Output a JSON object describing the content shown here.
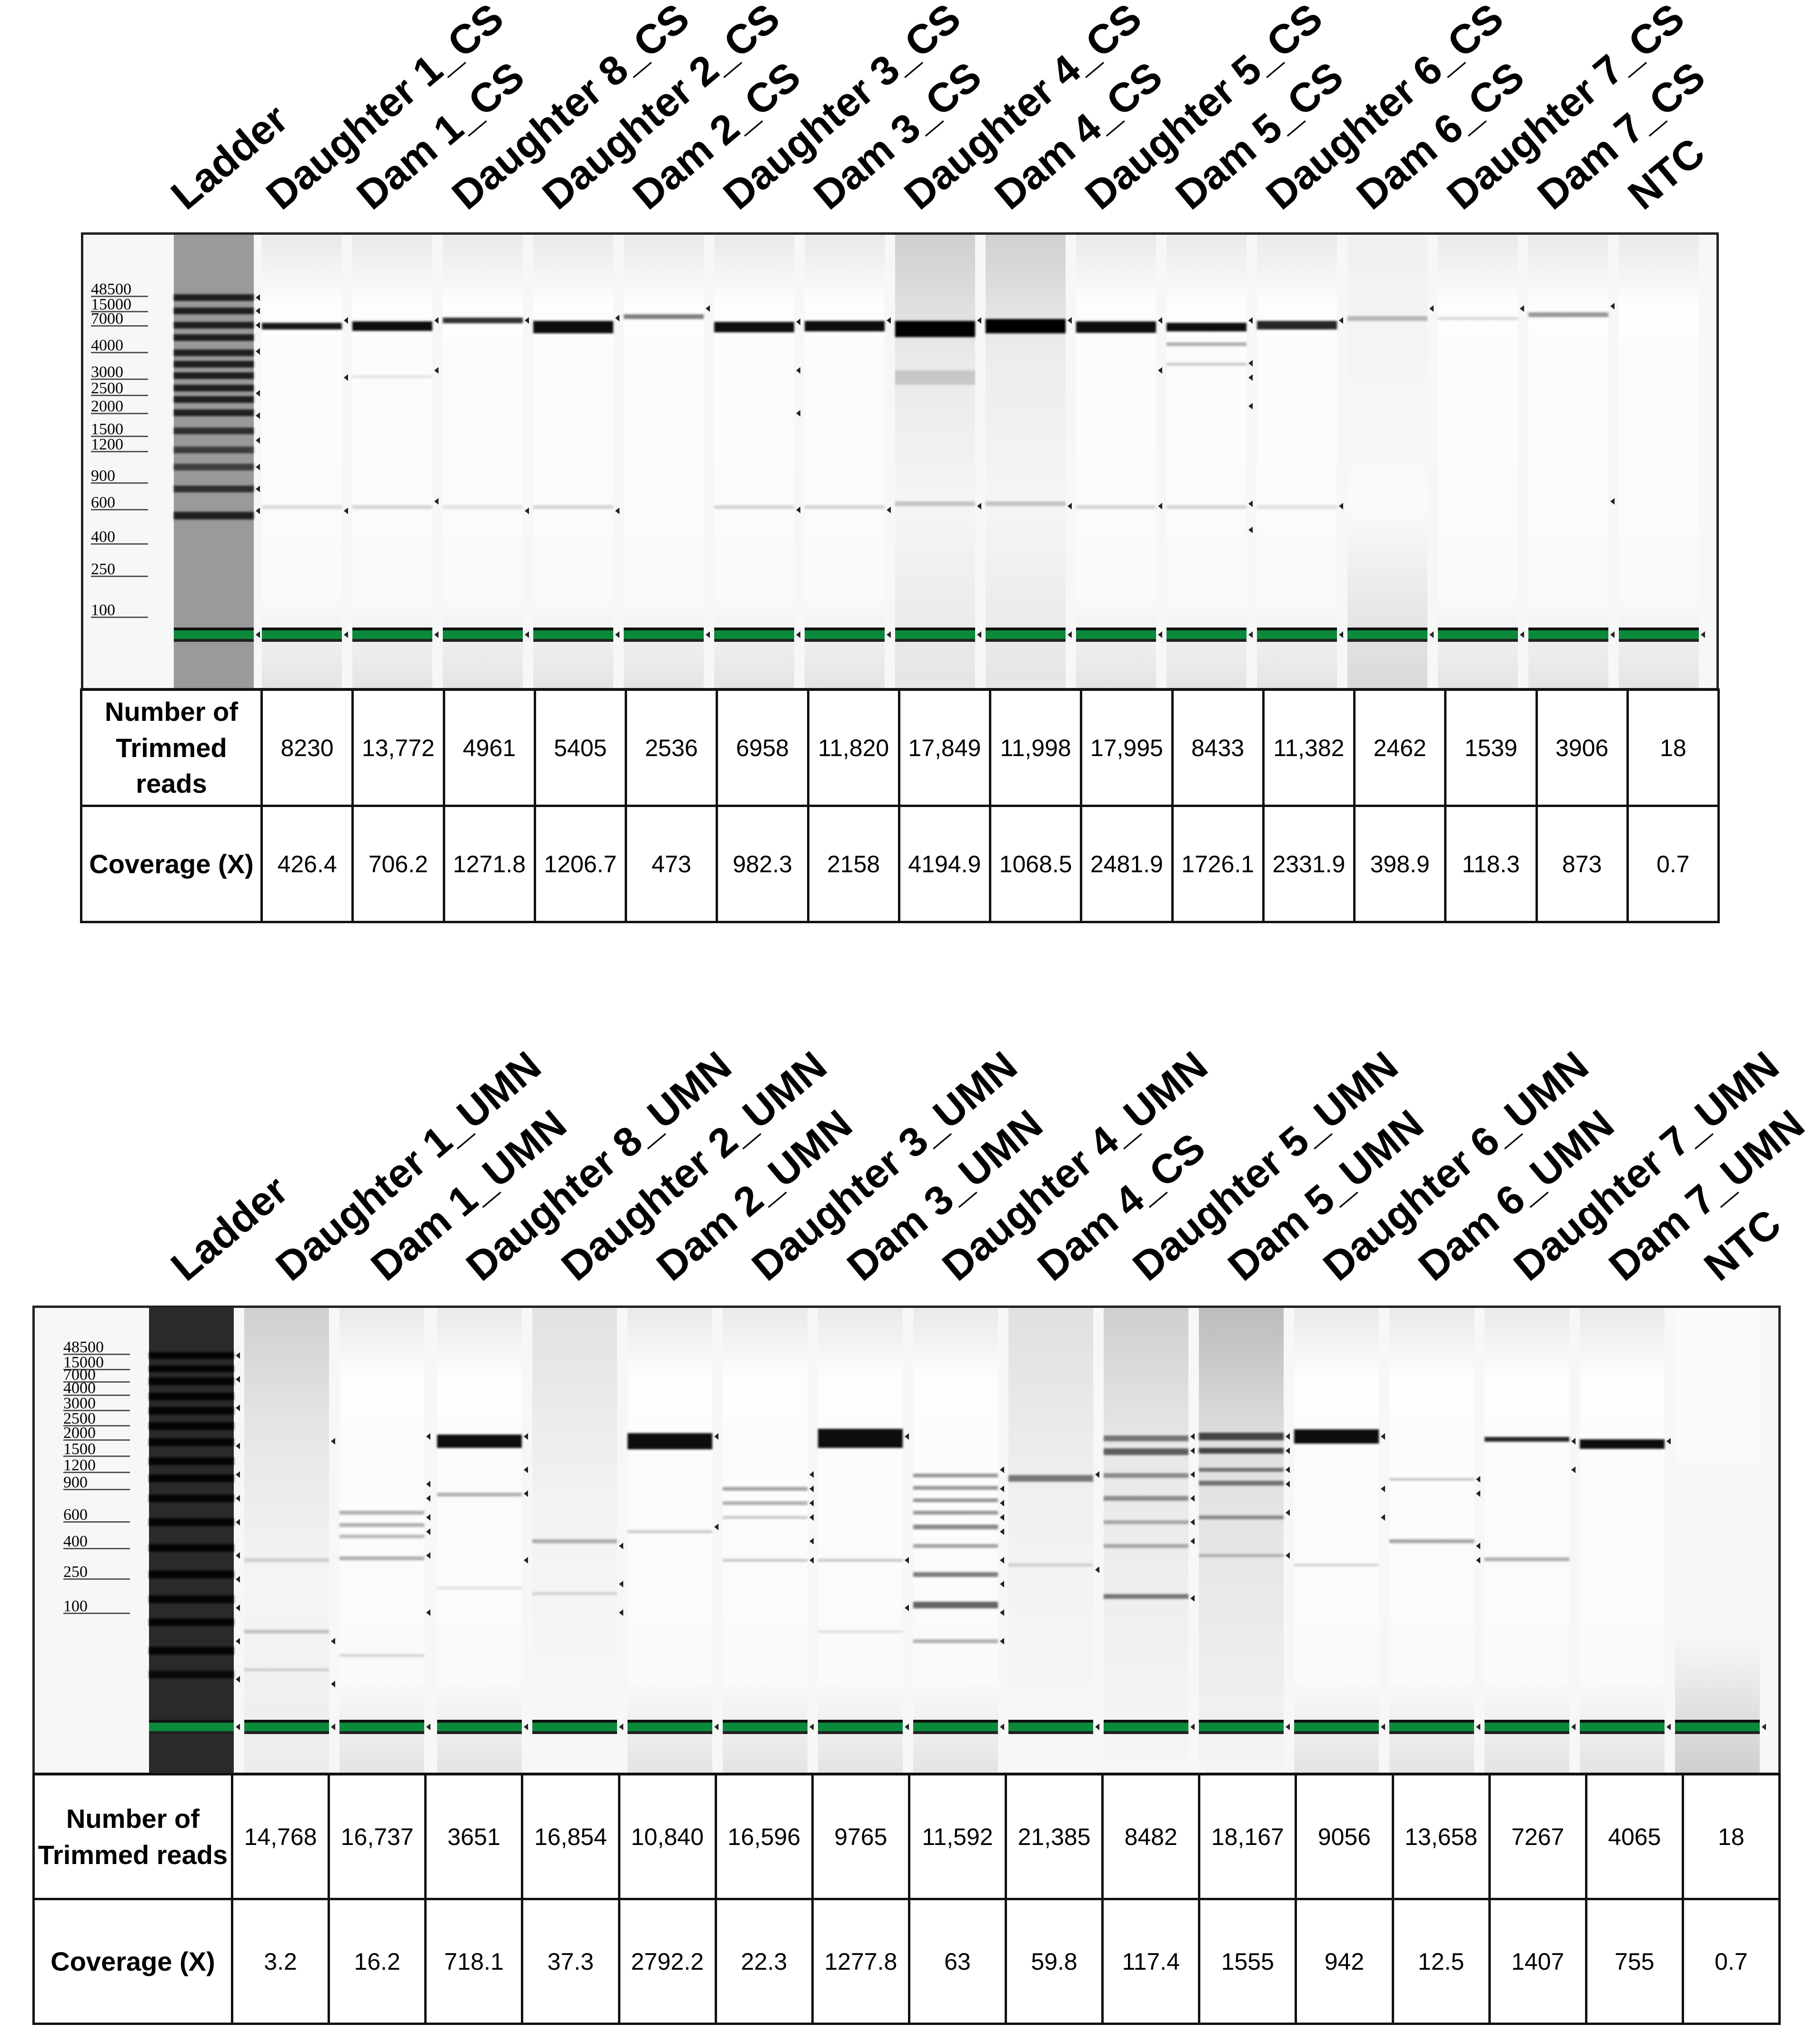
{
  "top_panel": {
    "lane_labels": [
      "Ladder",
      "Daughter 1_CS",
      "Dam 1_CS",
      "Daughter 8_CS",
      "Daughter 2_CS",
      "Dam 2_CS",
      "Daughter 3_CS",
      "Dam 3_CS",
      "Daughter 4_CS",
      "Dam 4_CS",
      "Daughter 5_CS",
      "Dam 5_CS",
      "Daughter 6_CS",
      "Dam 6_CS",
      "Daughter 7_CS",
      "Dam 7_CS",
      "NTC"
    ],
    "ladder_sizes": [
      "48500",
      "15000",
      "7000",
      "4000",
      "3000",
      "2500",
      "2000",
      "1500",
      "1200",
      "900",
      "600",
      "400",
      "250",
      "100"
    ],
    "row_headers": {
      "reads": "Number of Trimmed reads",
      "coverage": "Coverage (X)"
    },
    "reads": [
      "8230",
      "13,772",
      "4961",
      "5405",
      "2536",
      "6958",
      "11,820",
      "17,849",
      "11,998",
      "17,995",
      "8433",
      "11,382",
      "2462",
      "1539",
      "3906",
      "18"
    ],
    "coverage": [
      "426.4",
      "706.2",
      "1271.8",
      "1206.7",
      "473",
      "982.3",
      "2158",
      "4194.9",
      "1068.5",
      "2481.9",
      "1726.1",
      "2331.9",
      "398.9",
      "118.3",
      "873",
      "0.7"
    ]
  },
  "bottom_panel": {
    "lane_labels": [
      "Ladder",
      "Daughter 1_UMN",
      "Dam 1_UMN",
      "Daughter 8_UMN",
      "Daughter 2_UMN",
      "Dam 2_UMN",
      "Daughter 3_UMN",
      "Dam 3_UMN",
      "Daughter 4_UMN",
      "Dam 4_CS",
      "Daughter 5_UMN",
      "Dam 5_UMN",
      "Daughter 6_UMN",
      "Dam 6_UMN",
      "Daughter 7_UMN",
      "Dam 7_UMN",
      "NTC"
    ],
    "ladder_sizes": [
      "48500",
      "15000",
      "7000",
      "4000",
      "3000",
      "2500",
      "2000",
      "1500",
      "1200",
      "900",
      "600",
      "400",
      "250",
      "100"
    ],
    "row_headers": {
      "reads": "Number of Trimmed reads",
      "coverage": "Coverage (X)"
    },
    "reads": [
      "14,768",
      "16,737",
      "3651",
      "16,854",
      "10,840",
      "16,596",
      "9765",
      "11,592",
      "21,385",
      "8482",
      "18,167",
      "9056",
      "13,658",
      "7267",
      "4065",
      "18"
    ],
    "coverage": [
      "3.2",
      "16.2",
      "718.1",
      "37.3",
      "2792.2",
      "22.3",
      "1277.8",
      "63",
      "59.8",
      "117.4",
      "1555",
      "942",
      "12.5",
      "1407",
      "755",
      "0.7"
    ]
  },
  "colors": {
    "marker_band": "#0a8a3a",
    "frame": "#222222",
    "band_dark": "#111111"
  }
}
